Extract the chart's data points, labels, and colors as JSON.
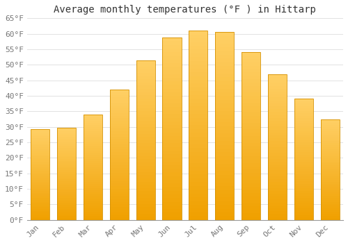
{
  "title": "Average monthly temperatures (°F ) in Hittarp",
  "months": [
    "Jan",
    "Feb",
    "Mar",
    "Apr",
    "May",
    "Jun",
    "Jul",
    "Aug",
    "Sep",
    "Oct",
    "Nov",
    "Dec"
  ],
  "values": [
    29.3,
    29.8,
    34.0,
    42.0,
    51.5,
    58.8,
    61.0,
    60.5,
    54.0,
    47.0,
    39.0,
    32.5
  ],
  "bar_color_light": "#FFD066",
  "bar_color_dark": "#F0A000",
  "bar_edge_color": "#D49000",
  "background_color": "#FFFFFF",
  "grid_color": "#DDDDDD",
  "ylim": [
    0,
    65
  ],
  "yticks": [
    0,
    5,
    10,
    15,
    20,
    25,
    30,
    35,
    40,
    45,
    50,
    55,
    60,
    65
  ],
  "title_fontsize": 10,
  "tick_fontsize": 8,
  "title_color": "#333333",
  "tick_color": "#777777",
  "bar_width": 0.72
}
